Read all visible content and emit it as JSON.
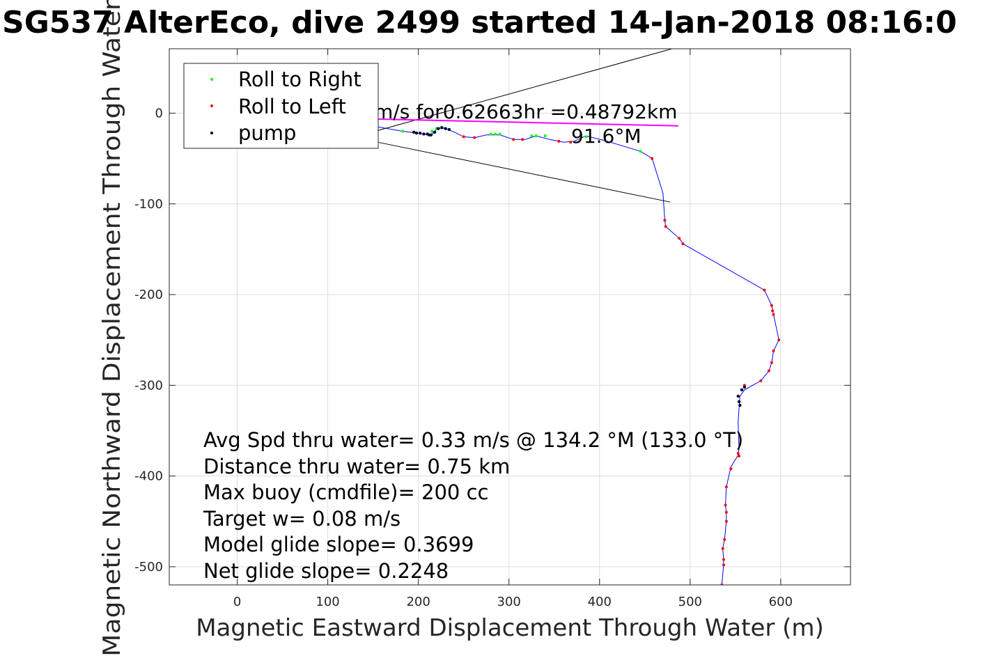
{
  "chart_data": {
    "type": "line",
    "title": "SG537 AlterEco, dive 2499 started 14-Jan-2018 08:16:0",
    "xlabel": "Magnetic Eastward Displacement Through Water (m)",
    "ylabel": "Magnetic Northward Displacement Through Water (",
    "xlim": [
      -75,
      677
    ],
    "ylim": [
      -520,
      71
    ],
    "xticks": [
      0,
      100,
      200,
      300,
      400,
      500,
      600
    ],
    "yticks": [
      0,
      -100,
      -200,
      -300,
      -400,
      -500
    ],
    "grid": true,
    "legend": {
      "placement": "top-left",
      "entries": [
        {
          "label": "Roll to Right",
          "color": "#00ff00"
        },
        {
          "label": "Roll to Left",
          "color": "#ff0000"
        },
        {
          "label": "pump",
          "color": "#000000"
        }
      ]
    },
    "colors": {
      "track": "#0000ff",
      "roll_right": "#00ff00",
      "roll_left": "#ff0000",
      "pump": "#000033",
      "current_vector": "#ff00ff"
    },
    "annotations": {
      "current_text": "m/s for0.62663hr =0.48792km",
      "heading_text": "91.6°M"
    },
    "current_vector": [
      [
        0,
        -3
      ],
      [
        487,
        -14
      ]
    ],
    "cone_lines": [
      [
        [
          145,
          -22
        ],
        [
          480,
          71
        ]
      ],
      [
        [
          155,
          -32
        ],
        [
          478,
          -98
        ]
      ]
    ],
    "series": [
      {
        "name": "track",
        "x": [
          140,
          160,
          183,
          200,
          210,
          215,
          220,
          225,
          230,
          240,
          250,
          262,
          275,
          290,
          305,
          318,
          330,
          345,
          360,
          372,
          385,
          405,
          445,
          458,
          470,
          472,
          473,
          488,
          492,
          582,
          590,
          592,
          598,
          592,
          590,
          587,
          578,
          560,
          555,
          553,
          554,
          553,
          545,
          540,
          539,
          540,
          540,
          538,
          536,
          537,
          537,
          535
        ],
        "y": [
          -12,
          -16,
          -20,
          -22,
          -24,
          -23,
          -18,
          -16,
          -17,
          -21,
          -26,
          -27,
          -24,
          -24,
          -29,
          -29,
          -25,
          -29,
          -32,
          -31,
          -25,
          -30,
          -42,
          -50,
          -88,
          -118,
          -125,
          -138,
          -144,
          -195,
          -212,
          -222,
          -250,
          -262,
          -275,
          -284,
          -295,
          -305,
          -312,
          -340,
          -370,
          -377,
          -390,
          -412,
          -432,
          -440,
          -450,
          -470,
          -480,
          -492,
          -498,
          -520
        ]
      },
      {
        "name": "roll_right",
        "x": [
          183,
          215,
          220,
          225,
          230,
          280,
          285,
          290,
          325,
          330,
          340,
          385,
          445
        ],
        "y": [
          -20,
          -20,
          -17,
          -16,
          -17,
          -23,
          -23,
          -23,
          -25,
          -25,
          -25,
          -26,
          -42
        ]
      },
      {
        "name": "roll_left",
        "x": [
          250,
          262,
          305,
          315,
          355,
          368,
          458,
          472,
          473,
          488,
          492,
          582,
          590,
          591,
          592,
          598,
          592,
          590,
          587,
          578,
          560,
          553,
          554,
          545,
          540,
          539,
          540,
          540,
          538,
          536,
          537,
          537,
          535
        ],
        "y": [
          -26,
          -27,
          -29,
          -29,
          -31,
          -32,
          -50,
          -118,
          -125,
          -138,
          -144,
          -195,
          -212,
          -218,
          -222,
          -250,
          -262,
          -275,
          -284,
          -295,
          -300,
          -375,
          -378,
          -392,
          -412,
          -432,
          -440,
          -450,
          -470,
          -480,
          -492,
          -498,
          -520
        ]
      },
      {
        "name": "pump",
        "x": [
          195,
          198,
          202,
          206,
          210,
          212,
          214,
          218,
          222,
          226,
          230,
          234,
          553,
          554,
          555,
          557,
          560
        ],
        "y": [
          -21,
          -22,
          -22,
          -23,
          -23,
          -24,
          -24,
          -21,
          -17,
          -16,
          -17,
          -18,
          -312,
          -318,
          -322,
          -305,
          -302
        ]
      }
    ],
    "stats_lines": [
      "Avg Spd thru water=  0.33 m/s @ 134.2 °M (133.0 °T)",
      "Distance thru water=  0.75 km",
      "Max buoy (cmdfile)= 200 cc",
      "Target w= 0.08 m/s",
      "Model glide slope= 0.3699",
      "Net glide slope= 0.2248"
    ]
  }
}
